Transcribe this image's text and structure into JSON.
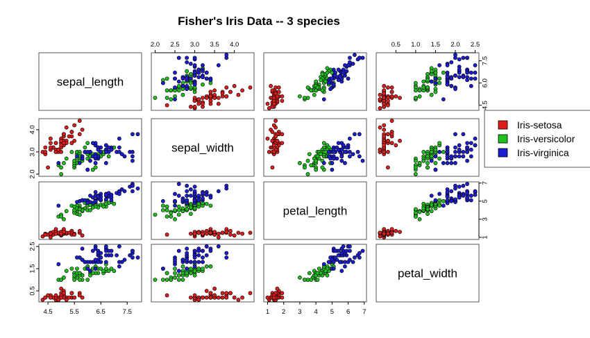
{
  "chart_data": {
    "type": "scatter",
    "subtype": "pairs-matrix",
    "title": "Fisher's Iris Data -- 3 species",
    "variables": [
      "sepal_length",
      "sepal_width",
      "petal_length",
      "petal_width"
    ],
    "ranges": {
      "sepal_length": [
        4.3,
        7.9
      ],
      "sepal_width": [
        2.0,
        4.4
      ],
      "petal_length": [
        1.0,
        6.9
      ],
      "petal_width": [
        0.1,
        2.5
      ]
    },
    "ticks": {
      "sepal_length": [
        4.5,
        5.5,
        6.5,
        7.5
      ],
      "sepal_width": [
        2.0,
        2.5,
        3.0,
        3.5,
        4.0
      ],
      "petal_length": [
        1,
        2,
        3,
        4,
        5,
        6,
        7
      ],
      "petal_width": [
        0.5,
        1.0,
        1.5,
        2.0,
        2.5
      ]
    },
    "tick_labels": {
      "sepal_length": [
        "4.5",
        "5.5",
        "6.5",
        "7.5"
      ],
      "sepal_width_top": [
        "2.0",
        "2.5",
        "3.0",
        "3.5",
        "4.0"
      ],
      "sepal_width_left": [
        "2.0",
        "3.0",
        "4.0"
      ],
      "petal_length_bottom": [
        "1",
        "2",
        "3",
        "4",
        "5",
        "6",
        "7"
      ],
      "petal_length_right": [
        "1",
        "3",
        "5",
        "7"
      ],
      "petal_width_top": [
        "0.5",
        "1.0",
        "1.5",
        "2.0",
        "2.5"
      ],
      "petal_width_left": [
        "0.5",
        "1.5",
        "2.5"
      ],
      "sepal_length_right": [
        "4.5",
        "6.0",
        "7.5"
      ]
    },
    "legend": {
      "position": "right",
      "entries": [
        {
          "label": "Iris-setosa",
          "color": "#dd1c1c"
        },
        {
          "label": "Iris-versicolor",
          "color": "#1fbf1f"
        },
        {
          "label": "Iris-virginica",
          "color": "#1c1cd0"
        }
      ]
    },
    "grid": false,
    "species": [
      {
        "name": "Iris-setosa",
        "color": "#dd1c1c",
        "points": [
          [
            5.1,
            3.5,
            1.4,
            0.2
          ],
          [
            4.9,
            3.0,
            1.4,
            0.2
          ],
          [
            4.7,
            3.2,
            1.3,
            0.2
          ],
          [
            4.6,
            3.1,
            1.5,
            0.2
          ],
          [
            5.0,
            3.6,
            1.4,
            0.2
          ],
          [
            5.4,
            3.9,
            1.7,
            0.4
          ],
          [
            4.6,
            3.4,
            1.4,
            0.3
          ],
          [
            5.0,
            3.4,
            1.5,
            0.2
          ],
          [
            4.4,
            2.9,
            1.4,
            0.2
          ],
          [
            4.9,
            3.1,
            1.5,
            0.1
          ],
          [
            5.4,
            3.7,
            1.5,
            0.2
          ],
          [
            4.8,
            3.4,
            1.6,
            0.2
          ],
          [
            4.8,
            3.0,
            1.4,
            0.1
          ],
          [
            4.3,
            3.0,
            1.1,
            0.1
          ],
          [
            5.8,
            4.0,
            1.2,
            0.2
          ],
          [
            5.7,
            4.4,
            1.5,
            0.4
          ],
          [
            5.4,
            3.9,
            1.3,
            0.4
          ],
          [
            5.1,
            3.5,
            1.4,
            0.3
          ],
          [
            5.7,
            3.8,
            1.7,
            0.3
          ],
          [
            5.1,
            3.8,
            1.5,
            0.3
          ],
          [
            5.4,
            3.4,
            1.7,
            0.2
          ],
          [
            5.1,
            3.7,
            1.5,
            0.4
          ],
          [
            4.6,
            3.6,
            1.0,
            0.2
          ],
          [
            5.1,
            3.3,
            1.7,
            0.5
          ],
          [
            4.8,
            3.4,
            1.9,
            0.2
          ],
          [
            5.0,
            3.0,
            1.6,
            0.2
          ],
          [
            5.0,
            3.4,
            1.6,
            0.4
          ],
          [
            5.2,
            3.5,
            1.5,
            0.2
          ],
          [
            5.2,
            3.4,
            1.4,
            0.2
          ],
          [
            4.7,
            3.2,
            1.6,
            0.2
          ],
          [
            4.8,
            3.1,
            1.6,
            0.2
          ],
          [
            5.4,
            3.4,
            1.5,
            0.4
          ],
          [
            5.2,
            4.1,
            1.5,
            0.1
          ],
          [
            5.5,
            4.2,
            1.4,
            0.2
          ],
          [
            4.9,
            3.1,
            1.5,
            0.1
          ],
          [
            5.0,
            3.2,
            1.2,
            0.2
          ],
          [
            5.5,
            3.5,
            1.3,
            0.2
          ],
          [
            4.9,
            3.1,
            1.5,
            0.1
          ],
          [
            4.4,
            3.0,
            1.3,
            0.2
          ],
          [
            5.1,
            3.4,
            1.5,
            0.2
          ],
          [
            5.0,
            3.5,
            1.3,
            0.3
          ],
          [
            4.5,
            2.3,
            1.3,
            0.3
          ],
          [
            4.4,
            3.2,
            1.3,
            0.2
          ],
          [
            5.0,
            3.5,
            1.6,
            0.6
          ],
          [
            5.1,
            3.8,
            1.9,
            0.4
          ],
          [
            4.8,
            3.0,
            1.4,
            0.3
          ],
          [
            5.1,
            3.8,
            1.6,
            0.2
          ],
          [
            4.6,
            3.2,
            1.4,
            0.2
          ],
          [
            5.3,
            3.7,
            1.5,
            0.2
          ],
          [
            5.0,
            3.3,
            1.4,
            0.2
          ]
        ]
      },
      {
        "name": "Iris-versicolor",
        "color": "#1fbf1f",
        "points": [
          [
            7.0,
            3.2,
            4.7,
            1.4
          ],
          [
            6.4,
            3.2,
            4.5,
            1.5
          ],
          [
            6.9,
            3.1,
            4.9,
            1.5
          ],
          [
            5.5,
            2.3,
            4.0,
            1.3
          ],
          [
            6.5,
            2.8,
            4.6,
            1.5
          ],
          [
            5.7,
            2.8,
            4.5,
            1.3
          ],
          [
            6.3,
            3.3,
            4.7,
            1.6
          ],
          [
            4.9,
            2.4,
            3.3,
            1.0
          ],
          [
            6.6,
            2.9,
            4.6,
            1.3
          ],
          [
            5.2,
            2.7,
            3.9,
            1.4
          ],
          [
            5.0,
            2.0,
            3.5,
            1.0
          ],
          [
            5.9,
            3.0,
            4.2,
            1.5
          ],
          [
            6.0,
            2.2,
            4.0,
            1.0
          ],
          [
            6.1,
            2.9,
            4.7,
            1.4
          ],
          [
            5.6,
            2.9,
            3.6,
            1.3
          ],
          [
            6.7,
            3.1,
            4.4,
            1.4
          ],
          [
            5.6,
            3.0,
            4.5,
            1.5
          ],
          [
            5.8,
            2.7,
            4.1,
            1.0
          ],
          [
            6.2,
            2.2,
            4.5,
            1.5
          ],
          [
            5.6,
            2.5,
            3.9,
            1.1
          ],
          [
            5.9,
            3.2,
            4.8,
            1.8
          ],
          [
            6.1,
            2.8,
            4.0,
            1.3
          ],
          [
            6.3,
            2.5,
            4.9,
            1.5
          ],
          [
            6.1,
            2.8,
            4.7,
            1.2
          ],
          [
            6.4,
            2.9,
            4.3,
            1.3
          ],
          [
            6.6,
            3.0,
            4.4,
            1.4
          ],
          [
            6.8,
            2.8,
            4.8,
            1.4
          ],
          [
            6.7,
            3.0,
            5.0,
            1.7
          ],
          [
            6.0,
            2.9,
            4.5,
            1.5
          ],
          [
            5.7,
            2.6,
            3.5,
            1.0
          ],
          [
            5.5,
            2.4,
            3.8,
            1.1
          ],
          [
            5.5,
            2.4,
            3.7,
            1.0
          ],
          [
            5.8,
            2.7,
            3.9,
            1.2
          ],
          [
            6.0,
            2.7,
            5.1,
            1.6
          ],
          [
            5.4,
            3.0,
            4.5,
            1.5
          ],
          [
            6.0,
            3.4,
            4.5,
            1.6
          ],
          [
            6.7,
            3.1,
            4.7,
            1.5
          ],
          [
            6.3,
            2.3,
            4.4,
            1.3
          ],
          [
            5.6,
            3.0,
            4.1,
            1.3
          ],
          [
            5.5,
            2.5,
            4.0,
            1.3
          ],
          [
            5.5,
            2.6,
            4.4,
            1.2
          ],
          [
            6.1,
            3.0,
            4.6,
            1.4
          ],
          [
            5.8,
            2.6,
            4.0,
            1.2
          ],
          [
            5.0,
            2.3,
            3.3,
            1.0
          ],
          [
            5.6,
            2.7,
            4.2,
            1.3
          ],
          [
            5.7,
            3.0,
            4.2,
            1.2
          ],
          [
            5.7,
            2.9,
            4.2,
            1.3
          ],
          [
            6.2,
            2.9,
            4.3,
            1.3
          ],
          [
            5.1,
            2.5,
            3.0,
            1.1
          ],
          [
            5.7,
            2.8,
            4.1,
            1.3
          ]
        ]
      },
      {
        "name": "Iris-virginica",
        "color": "#1c1cd0",
        "points": [
          [
            6.3,
            3.3,
            6.0,
            2.5
          ],
          [
            5.8,
            2.7,
            5.1,
            1.9
          ],
          [
            7.1,
            3.0,
            5.9,
            2.1
          ],
          [
            6.3,
            2.9,
            5.6,
            1.8
          ],
          [
            6.5,
            3.0,
            5.8,
            2.2
          ],
          [
            7.6,
            3.0,
            6.6,
            2.1
          ],
          [
            4.9,
            2.5,
            4.5,
            1.7
          ],
          [
            7.3,
            2.9,
            6.3,
            1.8
          ],
          [
            6.7,
            2.5,
            5.8,
            1.8
          ],
          [
            7.2,
            3.6,
            6.1,
            2.5
          ],
          [
            6.5,
            3.2,
            5.1,
            2.0
          ],
          [
            6.4,
            2.7,
            5.3,
            1.9
          ],
          [
            6.8,
            3.0,
            5.5,
            2.1
          ],
          [
            5.7,
            2.5,
            5.0,
            2.0
          ],
          [
            5.8,
            2.8,
            5.1,
            2.4
          ],
          [
            6.4,
            3.2,
            5.3,
            2.3
          ],
          [
            6.5,
            3.0,
            5.5,
            1.8
          ],
          [
            7.7,
            3.8,
            6.7,
            2.2
          ],
          [
            7.7,
            2.6,
            6.9,
            2.3
          ],
          [
            6.0,
            2.2,
            5.0,
            1.5
          ],
          [
            6.9,
            3.2,
            5.7,
            2.3
          ],
          [
            5.6,
            2.8,
            4.9,
            2.0
          ],
          [
            7.7,
            2.8,
            6.7,
            2.0
          ],
          [
            6.3,
            2.7,
            4.9,
            1.8
          ],
          [
            6.7,
            3.3,
            5.7,
            2.1
          ],
          [
            7.2,
            3.2,
            6.0,
            1.8
          ],
          [
            6.2,
            2.8,
            4.8,
            1.8
          ],
          [
            6.1,
            3.0,
            4.9,
            1.8
          ],
          [
            6.4,
            2.8,
            5.6,
            2.1
          ],
          [
            7.2,
            3.0,
            5.8,
            1.6
          ],
          [
            7.4,
            2.8,
            6.1,
            1.9
          ],
          [
            7.9,
            3.8,
            6.4,
            2.0
          ],
          [
            6.4,
            2.8,
            5.6,
            2.2
          ],
          [
            6.3,
            2.8,
            5.1,
            1.5
          ],
          [
            6.1,
            2.6,
            5.6,
            1.4
          ],
          [
            7.7,
            3.0,
            6.1,
            2.3
          ],
          [
            6.3,
            3.4,
            5.6,
            2.4
          ],
          [
            6.4,
            3.1,
            5.5,
            1.8
          ],
          [
            6.0,
            3.0,
            4.8,
            1.8
          ],
          [
            6.9,
            3.1,
            5.4,
            2.1
          ],
          [
            6.7,
            3.1,
            5.6,
            2.4
          ],
          [
            6.9,
            3.1,
            5.1,
            2.3
          ],
          [
            5.8,
            2.7,
            5.1,
            1.9
          ],
          [
            6.8,
            3.2,
            5.9,
            2.3
          ],
          [
            6.7,
            3.3,
            5.7,
            2.5
          ],
          [
            6.7,
            3.0,
            5.2,
            2.3
          ],
          [
            6.3,
            2.5,
            5.0,
            1.9
          ],
          [
            6.5,
            3.0,
            5.2,
            2.0
          ],
          [
            6.2,
            3.4,
            5.4,
            2.3
          ],
          [
            5.9,
            3.0,
            5.1,
            1.8
          ]
        ]
      }
    ]
  }
}
